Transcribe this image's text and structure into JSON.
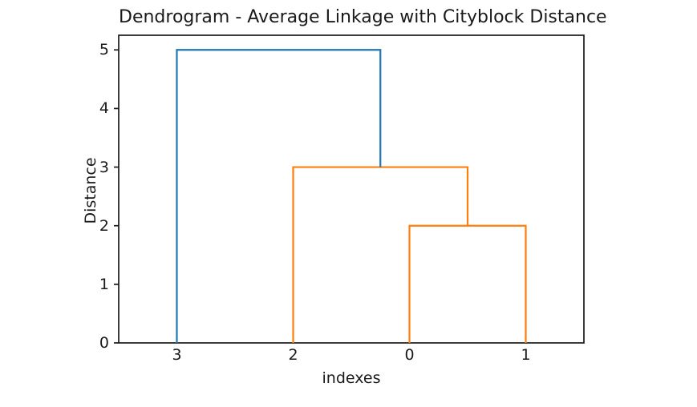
{
  "chart_data": {
    "type": "dendrogram",
    "title": "Dendrogram - Average Linkage with Cityblock Distance",
    "xlabel": "indexes",
    "ylabel": "Distance",
    "xlim": [
      0,
      40
    ],
    "ylim": [
      0,
      5.25
    ],
    "yticks": [
      0,
      1,
      2,
      3,
      4,
      5
    ],
    "leaf_labels": [
      "3",
      "2",
      "0",
      "1"
    ],
    "leaf_x": [
      5,
      15,
      25,
      35
    ],
    "links": [
      {
        "icoord": [
          25,
          25,
          35,
          35
        ],
        "dcoord": [
          0,
          2,
          2,
          0
        ],
        "color": "#ff7f0e"
      },
      {
        "icoord": [
          15,
          15,
          30,
          30
        ],
        "dcoord": [
          0,
          3,
          3,
          2
        ],
        "color": "#ff7f0e"
      },
      {
        "icoord": [
          5,
          5,
          22.5,
          22.5
        ],
        "dcoord": [
          0,
          5,
          5,
          3
        ],
        "color": "#1f77b4"
      }
    ],
    "merges": [
      {
        "joins": [
          "0",
          "1"
        ],
        "distance": 2
      },
      {
        "joins": [
          "2",
          "0+1"
        ],
        "distance": 3
      },
      {
        "joins": [
          "3",
          "2+0+1"
        ],
        "distance": 5
      }
    ],
    "colors": {
      "above_threshold_link": "#1f77b4",
      "cluster_link": "#ff7f0e",
      "axis": "#1a1a1a"
    },
    "grid": false,
    "legend_position": "none"
  }
}
